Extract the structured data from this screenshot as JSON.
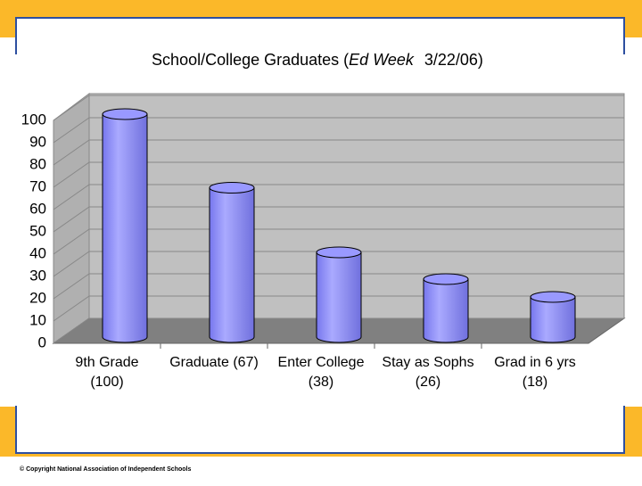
{
  "chart_data": {
    "type": "bar",
    "title": {
      "before": "School/College Graduates (",
      "italic": "Ed Week",
      "after": "3/22/06)"
    },
    "categories": [
      [
        "9th Grade",
        "(100)"
      ],
      [
        "Graduate (67)",
        null
      ],
      [
        "Enter College",
        "(38)"
      ],
      [
        "Stay as Sophs",
        "(26)"
      ],
      [
        "Grad in 6 yrs",
        "(18)"
      ]
    ],
    "values": [
      100,
      67,
      38,
      26,
      18
    ],
    "color": "#9999ff",
    "ylim": [
      0,
      100
    ],
    "yticks": [
      0,
      10,
      20,
      30,
      40,
      50,
      60,
      70,
      80,
      90,
      100
    ],
    "grid": true
  },
  "footer": {
    "copyright": "© Copyright National Association of Independent Schools"
  }
}
